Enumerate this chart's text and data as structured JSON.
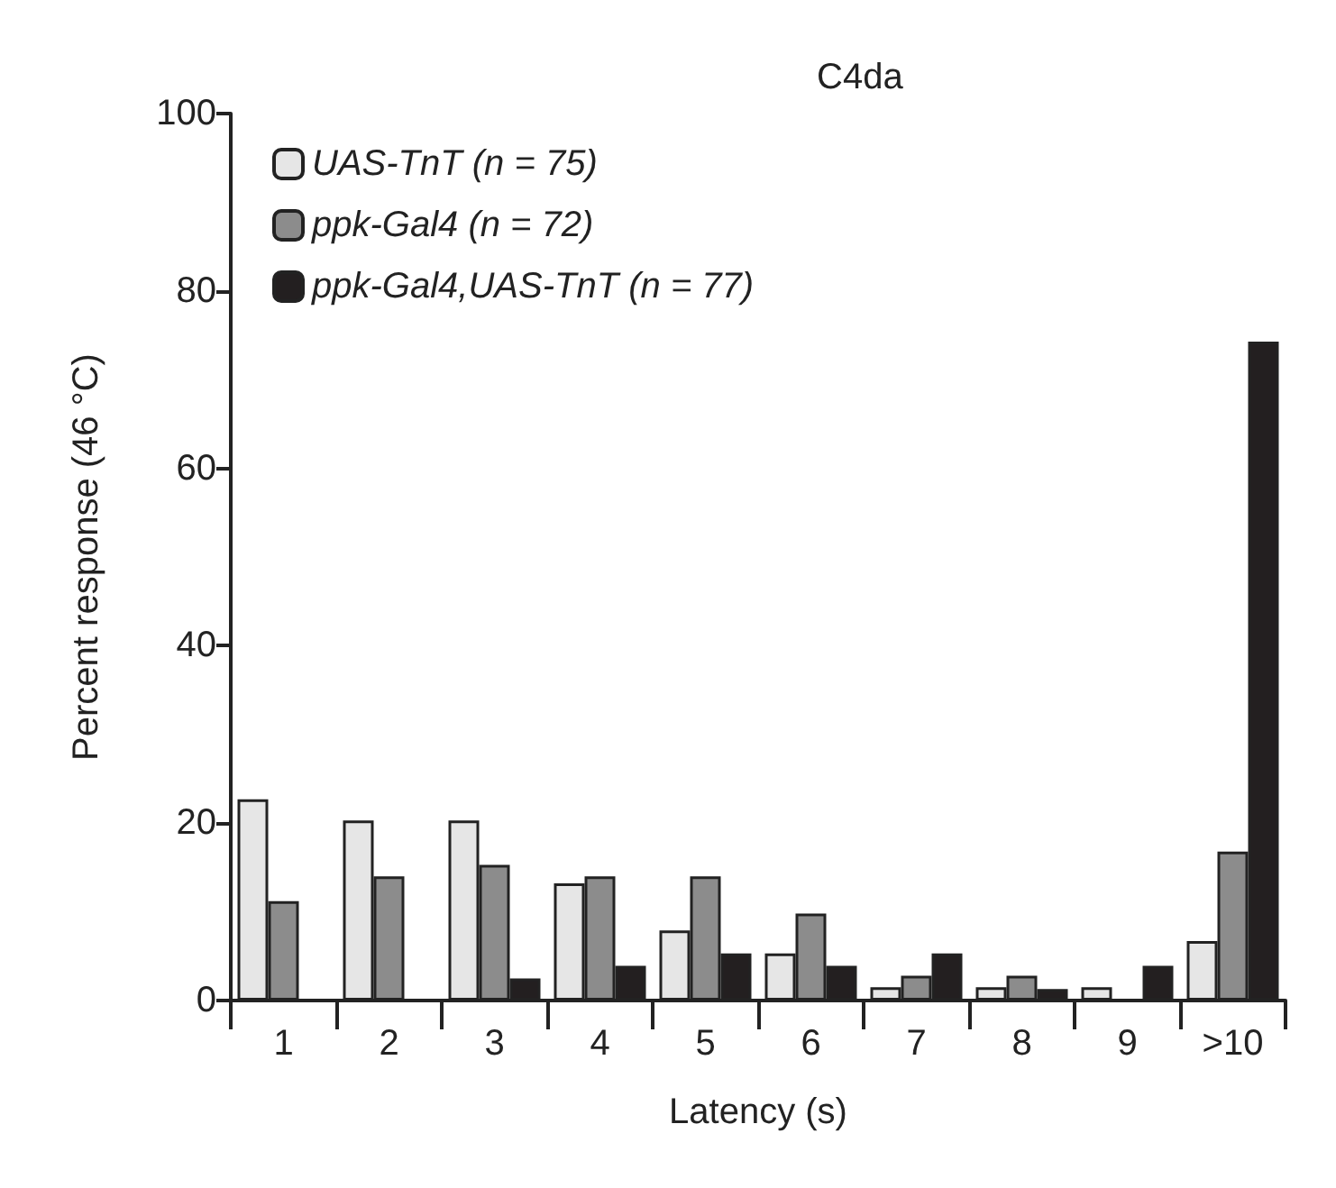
{
  "chart_data": {
    "type": "bar",
    "title": "C4da",
    "xlabel": "Latency (s)",
    "ylabel": "Percent response (46 °C)",
    "categories": [
      "1",
      "2",
      "3",
      "4",
      "5",
      "6",
      "7",
      "8",
      "9",
      ">10"
    ],
    "series": [
      {
        "name": "UAS-TnT (n = 75)",
        "color": "#e6e6e6",
        "values": [
          22.7,
          20.3,
          20.3,
          13.2,
          7.9,
          5.3,
          1.5,
          1.5,
          1.5,
          6.7
        ]
      },
      {
        "name": "ppk-Gal4 (n = 72)",
        "color": "#8c8c8c",
        "values": [
          11.2,
          14,
          15.3,
          14,
          14,
          9.8,
          2.8,
          2.8,
          0,
          16.8
        ]
      },
      {
        "name": "ppk-Gal4,UAS-TnT (n = 77)",
        "color": "#231f20",
        "values": [
          0,
          0,
          2.5,
          3.9,
          5.3,
          3.9,
          5.3,
          1.3,
          3.9,
          74.3
        ]
      }
    ],
    "ylim": [
      0,
      100
    ],
    "yticks": [
      0,
      20,
      40,
      60,
      80,
      100
    ],
    "grid": false,
    "legend": "top left"
  }
}
